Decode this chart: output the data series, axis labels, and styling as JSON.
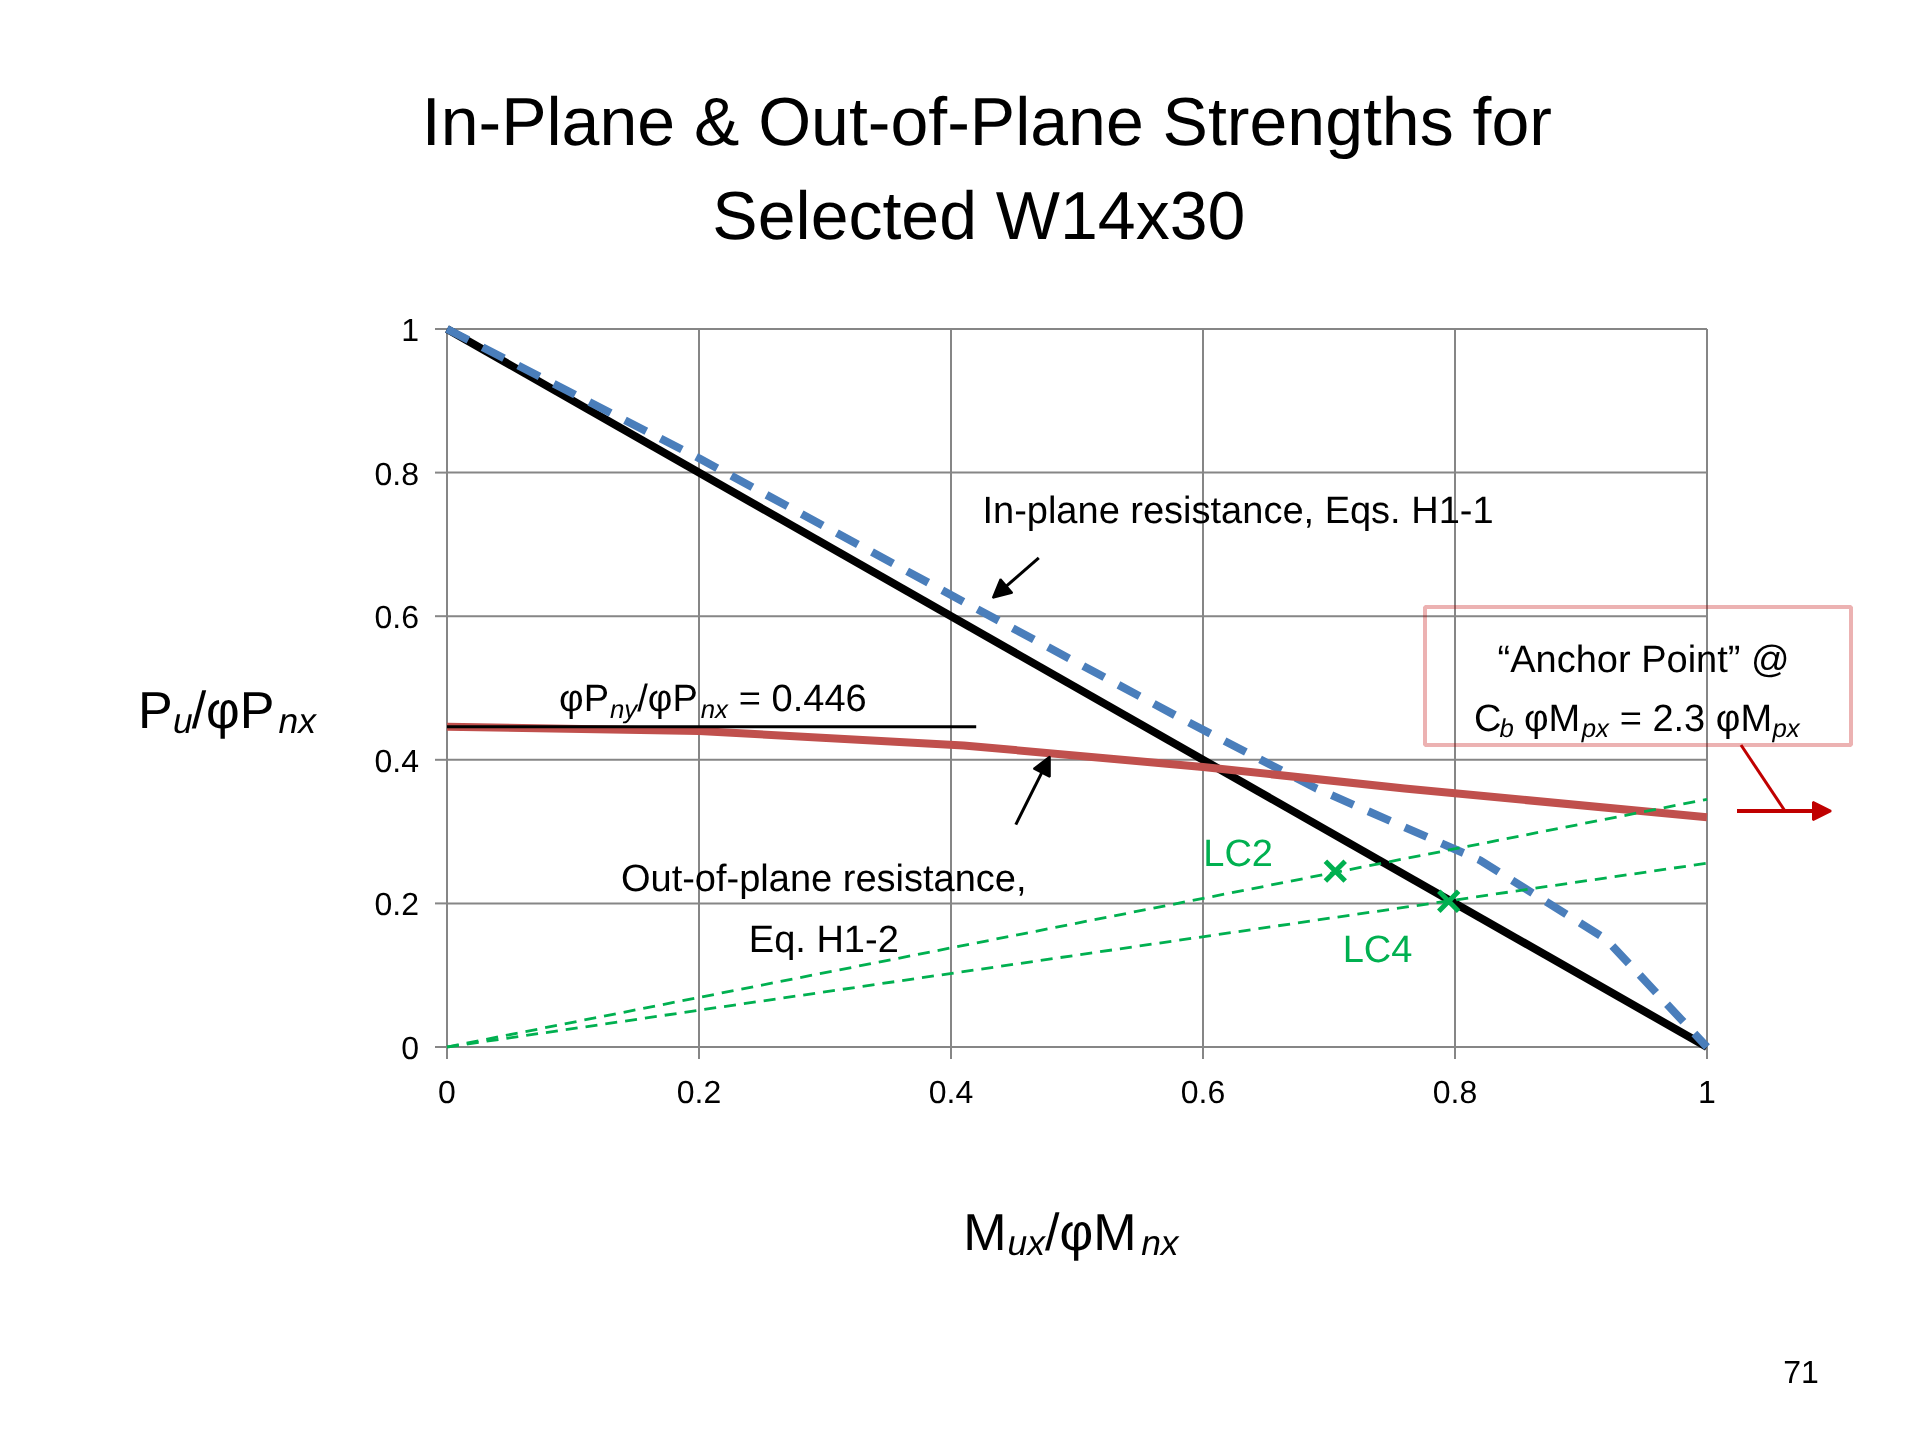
{
  "chart_data": {
    "type": "line",
    "title": "In-Plane & Out-of-Plane Strengths for\nSelected W14x30",
    "xlabel": "M$_{ux}$/φM$_{nx}$",
    "ylabel": "P$_{u}$/φP$_{nx}$",
    "xlim": [
      0,
      1
    ],
    "ylim": [
      0,
      1
    ],
    "xticks": [
      0,
      0.2,
      0.4,
      0.6,
      0.8,
      1
    ],
    "yticks": [
      0,
      0.2,
      0.4,
      0.6,
      0.8,
      1
    ],
    "grid": true,
    "series": [
      {
        "color": "#000000",
        "x": [
          0,
          1
        ],
        "values": [
          1,
          0
        ],
        "line_style": "solid"
      },
      {
        "color": "#4a7ebb",
        "x": [
          0,
          0.2,
          0.41,
          0.58,
          0.69,
          0.82,
          0.92,
          1
        ],
        "values": [
          1,
          0.82,
          0.62,
          0.46,
          0.36,
          0.26,
          0.15,
          0
        ],
        "line_style": "dashed"
      },
      {
        "color": "#c0504d",
        "x": [
          0,
          0.2,
          0.41,
          0.6,
          0.76,
          1
        ],
        "values": [
          0.446,
          0.44,
          0.42,
          0.39,
          0.36,
          0.32
        ],
        "line_style": "solid"
      },
      {
        "color": "#000000",
        "x": [
          0,
          0.42
        ],
        "values": [
          0.446,
          0.446
        ],
        "line_style": "solid"
      },
      {
        "color": "#00b050",
        "x": [
          0,
          1
        ],
        "values": [
          0,
          0.345
        ],
        "line_style": "dashed"
      },
      {
        "color": "#00b050",
        "x": [
          0,
          1
        ],
        "values": [
          0,
          0.256
        ],
        "line_style": "dashed"
      },
      {
        "type": "scatter",
        "marker": "cross",
        "color": "#00b050",
        "x": [
          0.705,
          0.795
        ],
        "values": [
          0.245,
          0.203
        ]
      }
    ],
    "annotations": [
      {
        "text": "In-plane resistance, Eqs. H1-1",
        "x": 0.43,
        "y": 0.62
      },
      {
        "text": "Out-of-plane resistance,\nEq. H1-2",
        "x": 0.48,
        "y": 0.41
      },
      {
        "text": "φP$_{ny}$/φP$_{nx}$ = 0.446",
        "x": 0.2,
        "y": 0.446
      },
      {
        "text": "LC2",
        "x": 0.705,
        "y": 0.245
      },
      {
        "text": "LC4",
        "x": 0.795,
        "y": 0.203
      },
      "“Anchor Point” @\nC$_{b}$ φM$_{px}$ = 2.3 φM$_{px}$",
      "71"
    ]
  }
}
